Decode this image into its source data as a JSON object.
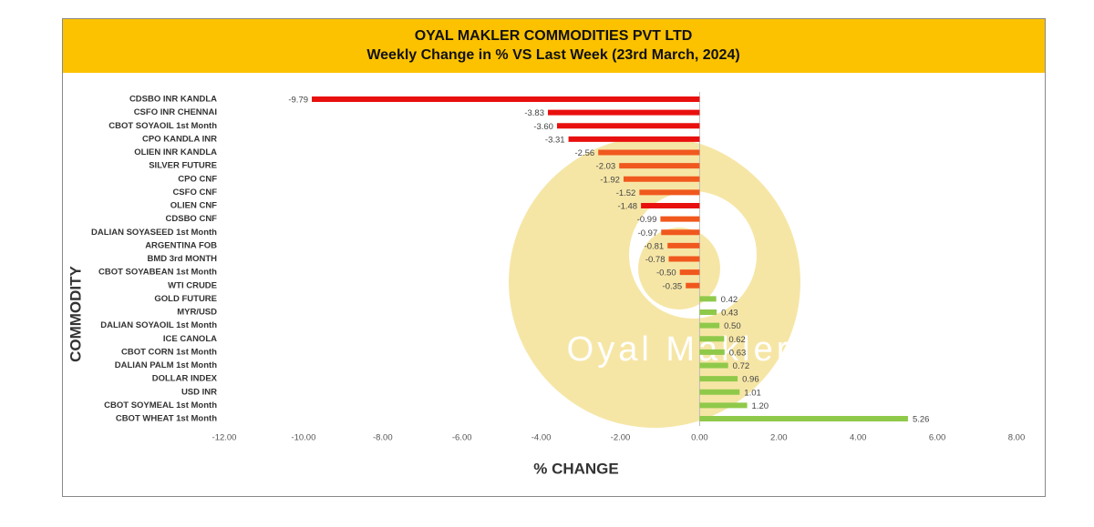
{
  "chart_data": {
    "type": "hbar",
    "title": "OYAL MAKLER COMMODITIES PVT LTD",
    "subtitle": "Weekly Change in % VS Last Week (23rd March, 2024)",
    "x_label": "% CHANGE",
    "y_label": "COMMODITY",
    "watermark": "Oyal Makler",
    "categories": [
      "CDSBO INR KANDLA",
      "CSFO INR CHENNAI",
      "CBOT SOYAOIL 1st Month",
      "CPO KANDLA INR",
      "OLIEN INR KANDLA",
      "SILVER FUTURE",
      "CPO CNF",
      "CSFO CNF",
      "OLIEN CNF",
      "CDSBO CNF",
      "DALIAN SOYASEED 1st Month",
      "ARGENTINA FOB",
      "BMD 3rd MONTH",
      "CBOT SOYABEAN 1st Month",
      "WTI CRUDE",
      "GOLD FUTURE",
      "MYR/USD",
      "DALIAN SOYAOIL 1st Month",
      "ICE CANOLA",
      "CBOT CORN 1st Month",
      "DALIAN PALM 1st Month",
      "DOLLAR INDEX",
      "USD INR",
      "CBOT SOYMEAL 1st Month",
      "CBOT WHEAT 1st Month"
    ],
    "values": [
      -9.79,
      -3.83,
      -3.6,
      -3.31,
      -2.56,
      -2.03,
      -1.92,
      -1.52,
      -1.48,
      -0.99,
      -0.97,
      -0.81,
      -0.78,
      -0.5,
      -0.35,
      0.42,
      0.43,
      0.5,
      0.62,
      0.63,
      0.72,
      0.96,
      1.01,
      1.2,
      5.26
    ],
    "value_labels": [
      "-9.79",
      "-3.83",
      "-3.60",
      "-3.31",
      "-2.56",
      "-2.03",
      "-1.92",
      "-1.52",
      "-1.48",
      "-0.99",
      "-0.97",
      "-0.81",
      "-0.78",
      "-0.50",
      "-0.35",
      "0.42",
      "0.43",
      "0.50",
      "0.62",
      "0.63",
      "0.72",
      "0.96",
      "1.01",
      "1.20",
      "5.26"
    ],
    "colors": [
      "#e8100e",
      "#e8100e",
      "#e8100e",
      "#e8100e",
      "#f0581e",
      "#f0581e",
      "#f0581e",
      "#f0581e",
      "#e8100e",
      "#f0581e",
      "#f0581e",
      "#f0581e",
      "#f0581e",
      "#f0581e",
      "#f0581e",
      "#8fc94a",
      "#8fc94a",
      "#8fc94a",
      "#8fc94a",
      "#8fc94a",
      "#8fc94a",
      "#8fc94a",
      "#8fc94a",
      "#8fc94a",
      "#8fc94a"
    ],
    "xlim": [
      -12,
      8
    ],
    "xticks": [
      {
        "value": -12,
        "label": "-12.00"
      },
      {
        "value": -10,
        "label": "-10.00"
      },
      {
        "value": -8,
        "label": "-8.00"
      },
      {
        "value": -6,
        "label": "-6.00"
      },
      {
        "value": -4,
        "label": "-4.00"
      },
      {
        "value": -2,
        "label": "-2.00"
      },
      {
        "value": 0,
        "label": "0.00"
      },
      {
        "value": 2,
        "label": "2.00"
      },
      {
        "value": 4,
        "label": "4.00"
      },
      {
        "value": 6,
        "label": "6.00"
      },
      {
        "value": 8,
        "label": "8.00"
      }
    ]
  }
}
